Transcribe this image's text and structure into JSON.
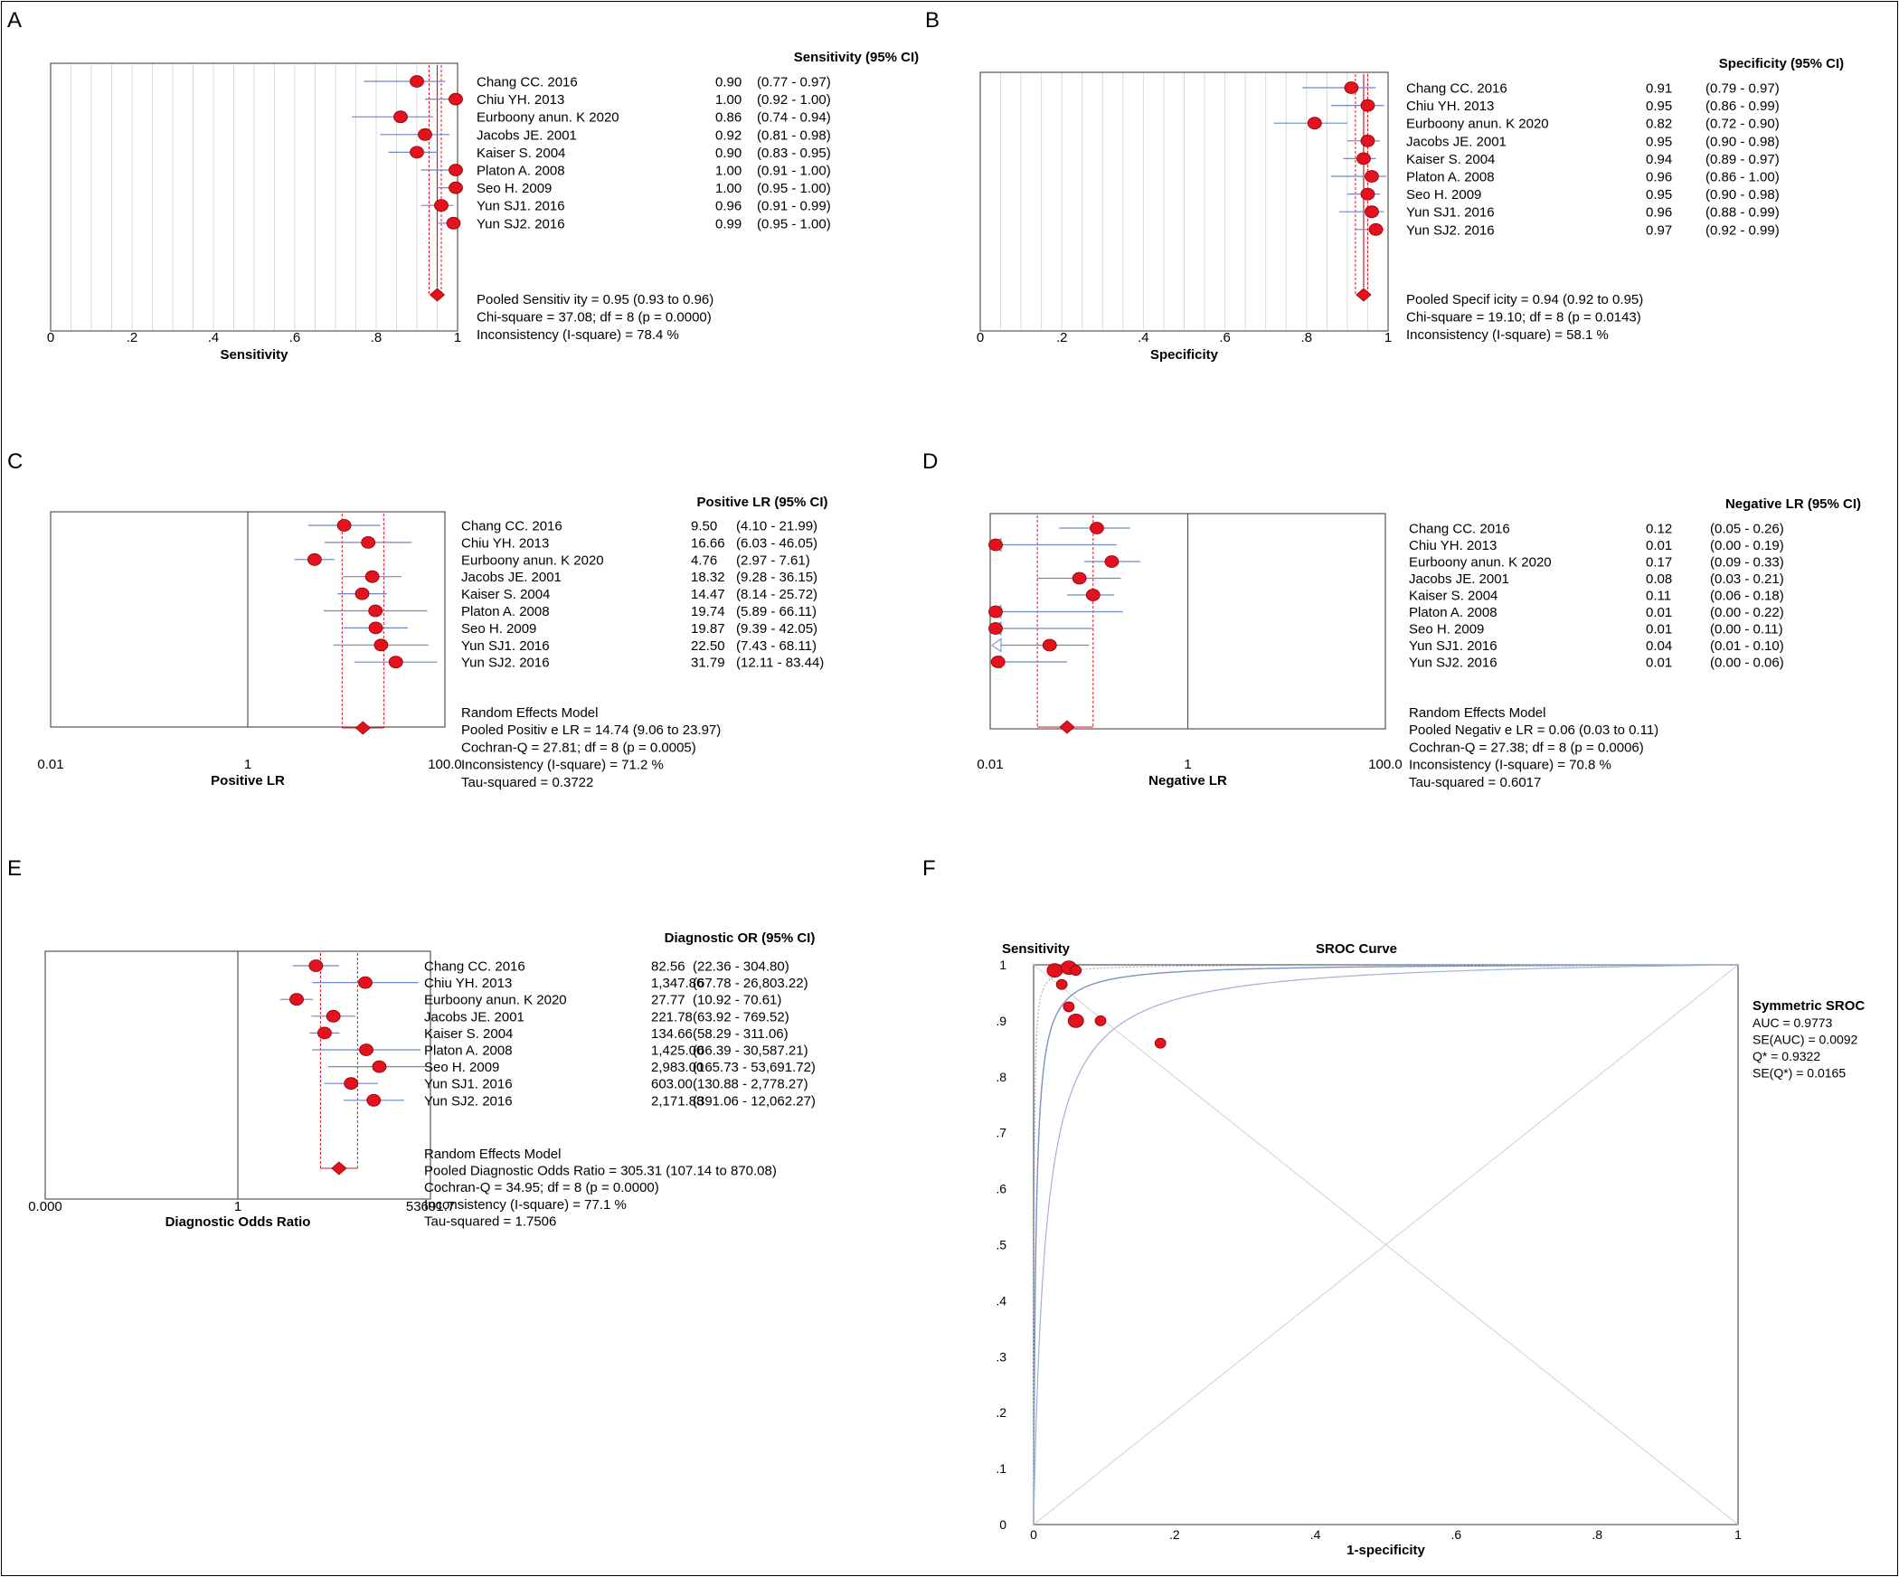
{
  "colors": {
    "point": "#e3121e",
    "ci": "#6f86c9",
    "pooled": "#e3121e",
    "gridline": "#d9d9d9"
  },
  "chart_data": [
    {
      "panel": "A",
      "type": "forest",
      "scale": "linear",
      "column_header": "Sensitivity (95% CI)",
      "xlabel": "Sensitivity",
      "xlim": [
        0,
        1
      ],
      "ticks": [
        0,
        0.2,
        0.4,
        0.6,
        0.8,
        1
      ],
      "tick_labels": [
        "0",
        ".2",
        ".4",
        ".6",
        ".8",
        "1"
      ],
      "studies": [
        {
          "name": "Chang CC. 2016",
          "value_text": "0.90",
          "ci_text": "(0.77 - 0.97)",
          "est": 0.9,
          "lo": 0.77,
          "hi": 0.97
        },
        {
          "name": "Chiu YH. 2013",
          "value_text": "1.00",
          "ci_text": "(0.92 - 1.00)",
          "est": 1.0,
          "lo": 0.92,
          "hi": 1.0
        },
        {
          "name": "Eurboony anun. K 2020",
          "value_text": "0.86",
          "ci_text": "(0.74 - 0.94)",
          "est": 0.86,
          "lo": 0.74,
          "hi": 0.94
        },
        {
          "name": "Jacobs JE. 2001",
          "value_text": "0.92",
          "ci_text": "(0.81 - 0.98)",
          "est": 0.92,
          "lo": 0.81,
          "hi": 0.98
        },
        {
          "name": "Kaiser S. 2004",
          "value_text": "0.90",
          "ci_text": "(0.83 - 0.95)",
          "est": 0.9,
          "lo": 0.83,
          "hi": 0.95
        },
        {
          "name": "Platon A. 2008",
          "value_text": "1.00",
          "ci_text": "(0.91 - 1.00)",
          "est": 1.0,
          "lo": 0.91,
          "hi": 1.0
        },
        {
          "name": "Seo H. 2009",
          "value_text": "1.00",
          "ci_text": "(0.95 - 1.00)",
          "est": 1.0,
          "lo": 0.95,
          "hi": 1.0
        },
        {
          "name": "Yun SJ1. 2016",
          "value_text": "0.96",
          "ci_text": "(0.91 - 0.99)",
          "est": 0.96,
          "lo": 0.91,
          "hi": 0.99
        },
        {
          "name": "Yun SJ2. 2016",
          "value_text": "0.99",
          "ci_text": "(0.95 - 1.00)",
          "est": 0.99,
          "lo": 0.95,
          "hi": 1.0
        }
      ],
      "pooled": {
        "est": 0.95,
        "lo": 0.93,
        "hi": 0.96
      },
      "summary_lines": [
        "Pooled Sensitiv ity = 0.95 (0.93 to 0.96)",
        "Chi-square = 37.08; df = 8 (p = 0.0000)",
        "Inconsistency (I-square) = 78.4 %"
      ]
    },
    {
      "panel": "B",
      "type": "forest",
      "scale": "linear",
      "column_header": "Specificity (95% CI)",
      "xlabel": "Specificity",
      "xlim": [
        0,
        1
      ],
      "ticks": [
        0,
        0.2,
        0.4,
        0.6,
        0.8,
        1
      ],
      "tick_labels": [
        "0",
        ".2",
        ".4",
        ".6",
        ".8",
        "1"
      ],
      "studies": [
        {
          "name": "Chang CC. 2016",
          "value_text": "0.91",
          "ci_text": "(0.79 - 0.97)",
          "est": 0.91,
          "lo": 0.79,
          "hi": 0.97
        },
        {
          "name": "Chiu YH. 2013",
          "value_text": "0.95",
          "ci_text": "(0.86 - 0.99)",
          "est": 0.95,
          "lo": 0.86,
          "hi": 0.99
        },
        {
          "name": "Eurboony anun. K 2020",
          "value_text": "0.82",
          "ci_text": "(0.72 - 0.90)",
          "est": 0.82,
          "lo": 0.72,
          "hi": 0.9
        },
        {
          "name": "Jacobs JE. 2001",
          "value_text": "0.95",
          "ci_text": "(0.90 - 0.98)",
          "est": 0.95,
          "lo": 0.9,
          "hi": 0.98
        },
        {
          "name": "Kaiser S. 2004",
          "value_text": "0.94",
          "ci_text": "(0.89 - 0.97)",
          "est": 0.94,
          "lo": 0.89,
          "hi": 0.97
        },
        {
          "name": "Platon A. 2008",
          "value_text": "0.96",
          "ci_text": "(0.86 - 1.00)",
          "est": 0.96,
          "lo": 0.86,
          "hi": 1.0
        },
        {
          "name": "Seo H. 2009",
          "value_text": "0.95",
          "ci_text": "(0.90 - 0.98)",
          "est": 0.95,
          "lo": 0.9,
          "hi": 0.98
        },
        {
          "name": "Yun SJ1. 2016",
          "value_text": "0.96",
          "ci_text": "(0.88 - 0.99)",
          "est": 0.96,
          "lo": 0.88,
          "hi": 0.99
        },
        {
          "name": "Yun SJ2. 2016",
          "value_text": "0.97",
          "ci_text": "(0.92 - 0.99)",
          "est": 0.97,
          "lo": 0.92,
          "hi": 0.99
        }
      ],
      "pooled": {
        "est": 0.94,
        "lo": 0.92,
        "hi": 0.95
      },
      "summary_lines": [
        "Pooled Specif icity = 0.94 (0.92 to 0.95)",
        "Chi-square = 19.10; df = 8 (p = 0.0143)",
        "Inconsistency (I-square) = 58.1 %"
      ]
    },
    {
      "panel": "C",
      "type": "forest",
      "scale": "log",
      "column_header": "Positive LR (95% CI)",
      "xlabel": "Positive LR",
      "xlim": [
        0.01,
        100
      ],
      "ticks": [
        0.01,
        1,
        100
      ],
      "tick_labels": [
        "0.01",
        "1",
        "100.0"
      ],
      "studies": [
        {
          "name": "Chang CC. 2016",
          "value_text": "9.50",
          "ci_text": "(4.10 - 21.99)",
          "est": 9.5,
          "lo": 4.1,
          "hi": 21.99
        },
        {
          "name": "Chiu YH. 2013",
          "value_text": "16.66",
          "ci_text": "(6.03 - 46.05)",
          "est": 16.66,
          "lo": 6.03,
          "hi": 46.05
        },
        {
          "name": "Eurboony anun. K 2020",
          "value_text": "4.76",
          "ci_text": "(2.97 - 7.61)",
          "est": 4.76,
          "lo": 2.97,
          "hi": 7.61
        },
        {
          "name": "Jacobs JE. 2001",
          "value_text": "18.32",
          "ci_text": "(9.28 - 36.15)",
          "est": 18.32,
          "lo": 9.28,
          "hi": 36.15
        },
        {
          "name": "Kaiser S. 2004",
          "value_text": "14.47",
          "ci_text": "(8.14 - 25.72)",
          "est": 14.47,
          "lo": 8.14,
          "hi": 25.72
        },
        {
          "name": "Platon A. 2008",
          "value_text": "19.74",
          "ci_text": "(5.89 - 66.11)",
          "est": 19.74,
          "lo": 5.89,
          "hi": 66.11
        },
        {
          "name": "Seo H. 2009",
          "value_text": "19.87",
          "ci_text": "(9.39 - 42.05)",
          "est": 19.87,
          "lo": 9.39,
          "hi": 42.05
        },
        {
          "name": "Yun SJ1. 2016",
          "value_text": "22.50",
          "ci_text": "(7.43 - 68.11)",
          "est": 22.5,
          "lo": 7.43,
          "hi": 68.11
        },
        {
          "name": "Yun SJ2. 2016",
          "value_text": "31.79",
          "ci_text": "(12.11 - 83.44)",
          "est": 31.79,
          "lo": 12.11,
          "hi": 83.44
        }
      ],
      "pooled": {
        "est": 14.74,
        "lo": 9.06,
        "hi": 23.97
      },
      "summary_lines": [
        "Random Effects Model",
        "Pooled Positiv e LR = 14.74 (9.06 to 23.97)",
        "Cochran-Q = 27.81; df = 8 (p = 0.0005)",
        "Inconsistency (I-square) = 71.2 %",
        "Tau-squared = 0.3722"
      ]
    },
    {
      "panel": "D",
      "type": "forest",
      "scale": "log",
      "column_header": "Negative LR (95% CI)",
      "xlabel": "Negative LR",
      "xlim": [
        0.01,
        100
      ],
      "ticks": [
        0.01,
        1,
        100
      ],
      "tick_labels": [
        "0.01",
        "1",
        "100.0"
      ],
      "studies": [
        {
          "name": "Chang CC. 2016",
          "value_text": "0.12",
          "ci_text": "(0.05 - 0.26)",
          "est": 0.12,
          "lo": 0.05,
          "hi": 0.26
        },
        {
          "name": "Chiu YH. 2013",
          "value_text": "0.01",
          "ci_text": "(0.00 - 0.19)",
          "est": 0.01,
          "lo": 0.0001,
          "hi": 0.19
        },
        {
          "name": "Eurboony anun. K 2020",
          "value_text": "0.17",
          "ci_text": "(0.09 - 0.33)",
          "est": 0.17,
          "lo": 0.09,
          "hi": 0.33
        },
        {
          "name": "Jacobs JE. 2001",
          "value_text": "0.08",
          "ci_text": "(0.03 - 0.21)",
          "est": 0.08,
          "lo": 0.03,
          "hi": 0.21
        },
        {
          "name": "Kaiser S. 2004",
          "value_text": "0.11",
          "ci_text": "(0.06 - 0.18)",
          "est": 0.11,
          "lo": 0.06,
          "hi": 0.18
        },
        {
          "name": "Platon A. 2008",
          "value_text": "0.01",
          "ci_text": "(0.00 - 0.22)",
          "est": 0.01,
          "lo": 0.0001,
          "hi": 0.22
        },
        {
          "name": "Seo H. 2009",
          "value_text": "0.01",
          "ci_text": "(0.00 - 0.11)",
          "est": 0.006,
          "lo": 0.0001,
          "hi": 0.11
        },
        {
          "name": "Yun SJ1. 2016",
          "value_text": "0.04",
          "ci_text": "(0.01 - 0.10)",
          "est": 0.04,
          "lo": 0.01,
          "hi": 0.1
        },
        {
          "name": "Yun SJ2. 2016",
          "value_text": "0.01",
          "ci_text": "(0.00 - 0.06)",
          "est": 0.012,
          "lo": 0.0001,
          "hi": 0.06
        }
      ],
      "pooled": {
        "est": 0.06,
        "lo": 0.03,
        "hi": 0.11
      },
      "summary_lines": [
        "Random Effects Model",
        "Pooled Negativ e LR = 0.06 (0.03 to 0.11)",
        "Cochran-Q = 27.38; df = 8 (p = 0.0006)",
        "Inconsistency (I-square) = 70.8 %",
        "Tau-squared = 0.6017"
      ]
    },
    {
      "panel": "E",
      "type": "forest",
      "scale": "log",
      "column_header": "Diagnostic OR (95% CI)",
      "xlabel": "Diagnostic Odds Ratio",
      "xlim": [
        1.8625e-05,
        53691.7
      ],
      "ticks": [
        1.8625e-05,
        1,
        53691.7
      ],
      "tick_labels": [
        "0.000",
        "1",
        "53691.7"
      ],
      "studies": [
        {
          "name": "Chang CC. 2016",
          "value_text": "82.56",
          "ci_text": "(22.36 - 304.80)",
          "est": 82.56,
          "lo": 22.36,
          "hi": 304.8
        },
        {
          "name": "Chiu YH. 2013",
          "value_text": "1,347.86",
          "ci_text": "(67.78 - 26,803.22)",
          "est": 1347.86,
          "lo": 67.78,
          "hi": 26803.22
        },
        {
          "name": "Eurboony anun. K 2020",
          "value_text": "27.77",
          "ci_text": "(10.92 - 70.61)",
          "est": 27.77,
          "lo": 10.92,
          "hi": 70.61
        },
        {
          "name": "Jacobs JE. 2001",
          "value_text": "221.78",
          "ci_text": "(63.92 - 769.52)",
          "est": 221.78,
          "lo": 63.92,
          "hi": 769.52
        },
        {
          "name": "Kaiser S. 2004",
          "value_text": "134.66",
          "ci_text": "(58.29 - 311.06)",
          "est": 134.66,
          "lo": 58.29,
          "hi": 311.06
        },
        {
          "name": "Platon A. 2008",
          "value_text": "1,425.00",
          "ci_text": "(66.39 - 30,587.21)",
          "est": 1425.0,
          "lo": 66.39,
          "hi": 30587.21
        },
        {
          "name": "Seo H. 2009",
          "value_text": "2,983.00",
          "ci_text": "(165.73 - 53,691.72)",
          "est": 2983.0,
          "lo": 165.73,
          "hi": 53691.72
        },
        {
          "name": "Yun SJ1. 2016",
          "value_text": "603.00",
          "ci_text": "(130.88 - 2,778.27)",
          "est": 603.0,
          "lo": 130.88,
          "hi": 2778.27
        },
        {
          "name": "Yun SJ2. 2016",
          "value_text": "2,171.88",
          "ci_text": "(391.06 - 12,062.27)",
          "est": 2171.88,
          "lo": 391.06,
          "hi": 12062.27
        }
      ],
      "pooled": {
        "est": 305.31,
        "lo": 107.14,
        "hi": 870.08
      },
      "summary_lines": [
        "Random Effects Model",
        "Pooled Diagnostic Odds Ratio = 305.31 (107.14 to 870.08)",
        "Cochran-Q = 34.95; df = 8 (p = 0.0000)",
        "Inconsistency (I-square) = 77.1 %",
        "Tau-squared = 1.7506"
      ]
    },
    {
      "panel": "F",
      "type": "scatter",
      "title": "SROC Curve",
      "ylabel": "Sensitivity",
      "xlabel": "1-specificity",
      "xlim": [
        0,
        1
      ],
      "ylim": [
        0,
        1
      ],
      "x_ticks": [
        0,
        0.2,
        0.4,
        0.6,
        0.8,
        1
      ],
      "x_tick_labels": [
        "0",
        ".2",
        ".4",
        ".6",
        ".8",
        "1"
      ],
      "y_ticks": [
        0,
        0.1,
        0.2,
        0.3,
        0.4,
        0.5,
        0.6,
        0.7,
        0.8,
        0.9,
        1
      ],
      "y_tick_labels": [
        "0",
        ".1",
        ".2",
        ".3",
        ".4",
        ".5",
        ".6",
        ".7",
        ".8",
        ".9",
        "1"
      ],
      "points": [
        {
          "x": 0.03,
          "y": 0.99,
          "size": "large"
        },
        {
          "x": 0.05,
          "y": 0.995,
          "size": "large"
        },
        {
          "x": 0.06,
          "y": 0.99,
          "size": "small"
        },
        {
          "x": 0.04,
          "y": 0.965,
          "size": "small"
        },
        {
          "x": 0.05,
          "y": 0.925,
          "size": "small"
        },
        {
          "x": 0.06,
          "y": 0.9,
          "size": "large"
        },
        {
          "x": 0.095,
          "y": 0.9,
          "size": "small"
        },
        {
          "x": 0.18,
          "y": 0.86,
          "size": "small"
        }
      ],
      "legend_title": "Symmetric SROC",
      "stats": [
        "AUC = 0.9773",
        "SE(AUC) = 0.0092",
        "Q* = 0.9322",
        "SE(Q*) = 0.0165"
      ]
    }
  ]
}
